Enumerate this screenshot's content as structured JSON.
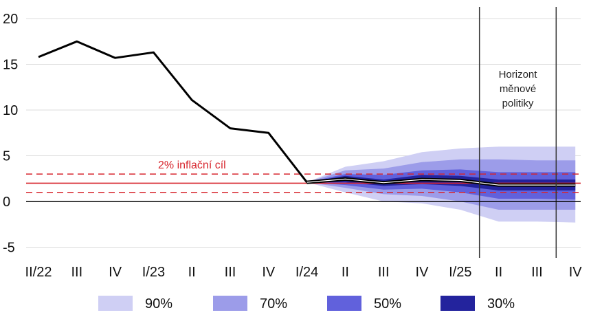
{
  "chart_data": {
    "type": "area",
    "title": "",
    "xlabel": "",
    "ylabel": "",
    "categories": [
      "II/22",
      "III",
      "IV",
      "I/23",
      "II",
      "III",
      "IV",
      "I/24",
      "II",
      "III",
      "IV",
      "I/25",
      "II",
      "III",
      "IV"
    ],
    "ylim": [
      -5,
      20
    ],
    "yticks": [
      -5,
      0,
      5,
      10,
      15,
      20
    ],
    "grid": true,
    "series": [
      {
        "type": "line",
        "values": [
          15.8,
          17.5,
          15.7,
          16.3,
          11.1,
          8.0,
          7.5,
          2.1,
          2.45,
          2.05,
          2.4,
          2.3,
          1.8,
          1.8,
          1.8
        ]
      }
    ],
    "fan_chart": {
      "start_index": 7,
      "central": [
        2.1,
        2.45,
        2.05,
        2.4,
        2.3,
        1.8,
        1.8,
        1.8
      ],
      "bands": [
        {
          "label": "90%",
          "color": "#cfcff4",
          "lower": [
            2.1,
            1.0,
            0.0,
            -0.2,
            -0.9,
            -2.2,
            -2.2,
            -2.3
          ],
          "upper": [
            2.1,
            3.8,
            4.4,
            5.4,
            5.8,
            6.0,
            6.0,
            6.0
          ]
        },
        {
          "label": "70%",
          "color": "#9c9ce9",
          "lower": [
            2.1,
            1.5,
            0.8,
            0.6,
            0.0,
            -0.9,
            -0.9,
            -0.9
          ],
          "upper": [
            2.1,
            3.4,
            3.6,
            4.3,
            4.6,
            4.6,
            4.5,
            4.5
          ]
        },
        {
          "label": "50%",
          "color": "#6161dc",
          "lower": [
            2.1,
            1.8,
            1.3,
            1.4,
            1.0,
            0.3,
            0.3,
            0.2
          ],
          "upper": [
            2.1,
            3.0,
            2.9,
            3.4,
            3.5,
            3.2,
            3.2,
            3.2
          ]
        },
        {
          "label": "30%",
          "color": "#23239d",
          "lower": [
            2.1,
            2.1,
            1.7,
            1.9,
            1.7,
            1.2,
            1.2,
            1.2
          ],
          "upper": [
            2.1,
            2.8,
            2.4,
            2.9,
            2.8,
            2.4,
            2.4,
            2.4
          ]
        }
      ]
    },
    "inflation_target": {
      "label": "2% inflační cíl",
      "value": 2,
      "tolerance": [
        1,
        3
      ],
      "color": "#d7262e"
    },
    "horizon": {
      "label_lines": [
        "Horizont",
        "měnové",
        "politiky"
      ],
      "x_positions": [
        11.5,
        13.5
      ]
    },
    "legend": [
      {
        "label": "90%",
        "color": "#cfcff4"
      },
      {
        "label": "70%",
        "color": "#9c9ce9"
      },
      {
        "label": "50%",
        "color": "#6161dc"
      },
      {
        "label": "30%",
        "color": "#23239d"
      }
    ],
    "legend_placement": "bottom"
  }
}
